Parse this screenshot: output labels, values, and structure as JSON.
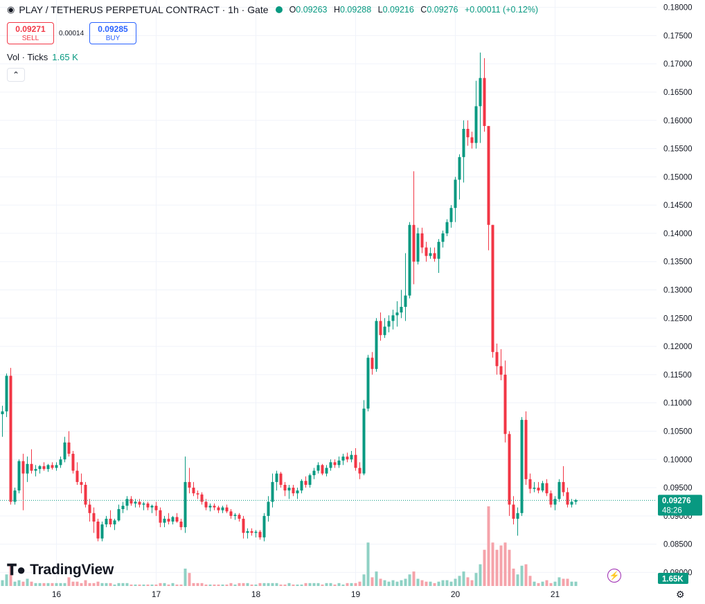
{
  "header": {
    "title": "PLAY / TETHERUS PERPETUAL CONTRACT · 1h · Gate",
    "open_label": "O",
    "open": "0.09263",
    "high_label": "H",
    "high": "0.09288",
    "low_label": "L",
    "low": "0.09216",
    "close_label": "C",
    "close": "0.09276",
    "change": "+0.00011 (+0.12%)"
  },
  "trade": {
    "sell_price": "0.09271",
    "sell_label": "SELL",
    "spread": "0.00014",
    "buy_price": "0.09285",
    "buy_label": "BUY"
  },
  "volume_legend": {
    "label": "Vol · Ticks",
    "value": "1.65 K"
  },
  "brand": {
    "name": "TradingView"
  },
  "price_tag": {
    "price": "0.09276",
    "countdown": "48:26"
  },
  "volume_tag": "1.65K",
  "colors": {
    "up": "#089981",
    "down": "#f23645",
    "up_vol": "#8fd1c4",
    "down_vol": "#f5a3aa"
  },
  "chart_data": {
    "type": "candlestick",
    "title": "PLAY / TETHERUS PERPETUAL CONTRACT · 1h · Gate",
    "y_ticks": [
      "0.08000",
      "0.08500",
      "0.09000",
      "0.09500",
      "0.10000",
      "0.10500",
      "0.11000",
      "0.11500",
      "0.12000",
      "0.12500",
      "0.13000",
      "0.13500",
      "0.14000",
      "0.14500",
      "0.15000",
      "0.15500",
      "0.16000",
      "0.16500",
      "0.17000",
      "0.17500",
      "0.18000"
    ],
    "ylim": [
      0.0776,
      0.1813
    ],
    "x_ticks": [
      {
        "label": "16",
        "index": 13
      },
      {
        "label": "17",
        "index": 37
      },
      {
        "label": "18",
        "index": 61
      },
      {
        "label": "19",
        "index": 85
      },
      {
        "label": "20",
        "index": 109
      },
      {
        "label": "21",
        "index": 133
      }
    ],
    "grid": true,
    "volume_pane": true,
    "last_price": 0.09276,
    "candles": [
      [
        0.108,
        0.1095,
        0.104,
        0.1085,
        4
      ],
      [
        0.1085,
        0.1152,
        0.1075,
        0.1148,
        8
      ],
      [
        0.1148,
        0.1162,
        0.092,
        0.0925,
        14
      ],
      [
        0.0925,
        0.095,
        0.092,
        0.0945,
        3
      ],
      [
        0.0945,
        0.1,
        0.094,
        0.0997,
        4
      ],
      [
        0.0997,
        0.101,
        0.091,
        0.0975,
        3
      ],
      [
        0.0975,
        0.1005,
        0.096,
        0.0992,
        5
      ],
      [
        0.0992,
        0.1018,
        0.0975,
        0.098,
        3
      ],
      [
        0.098,
        0.099,
        0.097,
        0.0983,
        2
      ],
      [
        0.0983,
        0.099,
        0.0975,
        0.0988,
        2
      ],
      [
        0.0988,
        0.0995,
        0.098,
        0.0983,
        2
      ],
      [
        0.0983,
        0.0992,
        0.0978,
        0.099,
        2
      ],
      [
        0.099,
        0.0995,
        0.0982,
        0.0985,
        2
      ],
      [
        0.0985,
        0.0995,
        0.098,
        0.099,
        2
      ],
      [
        0.099,
        0.1005,
        0.0985,
        0.1,
        2
      ],
      [
        0.1,
        0.104,
        0.0995,
        0.103,
        2
      ],
      [
        0.103,
        0.105,
        0.1005,
        0.101,
        6
      ],
      [
        0.101,
        0.1015,
        0.0975,
        0.098,
        3
      ],
      [
        0.098,
        0.0995,
        0.0955,
        0.096,
        3
      ],
      [
        0.096,
        0.0975,
        0.094,
        0.0955,
        2
      ],
      [
        0.0955,
        0.096,
        0.0915,
        0.092,
        4
      ],
      [
        0.092,
        0.093,
        0.089,
        0.0905,
        2
      ],
      [
        0.0905,
        0.0915,
        0.087,
        0.089,
        2
      ],
      [
        0.089,
        0.0895,
        0.0855,
        0.086,
        3
      ],
      [
        0.086,
        0.089,
        0.0855,
        0.0885,
        2
      ],
      [
        0.0885,
        0.09,
        0.088,
        0.0895,
        2
      ],
      [
        0.0895,
        0.091,
        0.088,
        0.0885,
        2
      ],
      [
        0.0885,
        0.0895,
        0.0875,
        0.0892,
        1
      ],
      [
        0.0892,
        0.092,
        0.089,
        0.0912,
        2
      ],
      [
        0.0912,
        0.0925,
        0.0905,
        0.0918,
        2
      ],
      [
        0.0918,
        0.0935,
        0.091,
        0.093,
        2
      ],
      [
        0.093,
        0.0935,
        0.0918,
        0.0922,
        1
      ],
      [
        0.0922,
        0.093,
        0.0915,
        0.0925,
        1
      ],
      [
        0.0925,
        0.093,
        0.0915,
        0.092,
        1
      ],
      [
        0.092,
        0.0925,
        0.091,
        0.0922,
        1
      ],
      [
        0.0922,
        0.0925,
        0.091,
        0.0915,
        1
      ],
      [
        0.0915,
        0.092,
        0.0905,
        0.0918,
        1
      ],
      [
        0.0918,
        0.0925,
        0.09,
        0.091,
        1
      ],
      [
        0.091,
        0.0915,
        0.088,
        0.0888,
        2
      ],
      [
        0.0888,
        0.09,
        0.088,
        0.0895,
        2
      ],
      [
        0.0895,
        0.0905,
        0.0885,
        0.089,
        1
      ],
      [
        0.089,
        0.09,
        0.0885,
        0.0898,
        2
      ],
      [
        0.0898,
        0.0905,
        0.0888,
        0.089,
        1
      ],
      [
        0.089,
        0.0895,
        0.0875,
        0.088,
        1
      ],
      [
        0.088,
        0.1005,
        0.087,
        0.096,
        12
      ],
      [
        0.096,
        0.0985,
        0.094,
        0.095,
        9
      ],
      [
        0.095,
        0.096,
        0.0935,
        0.094,
        2
      ],
      [
        0.094,
        0.0945,
        0.093,
        0.0938,
        2
      ],
      [
        0.0938,
        0.0942,
        0.092,
        0.0925,
        2
      ],
      [
        0.0925,
        0.093,
        0.091,
        0.0915,
        1
      ],
      [
        0.0915,
        0.0922,
        0.0908,
        0.0918,
        1
      ],
      [
        0.0918,
        0.0922,
        0.091,
        0.0915,
        1
      ],
      [
        0.0915,
        0.0918,
        0.0905,
        0.091,
        1
      ],
      [
        0.091,
        0.0918,
        0.0905,
        0.0915,
        1
      ],
      [
        0.0915,
        0.092,
        0.0905,
        0.0908,
        1
      ],
      [
        0.0908,
        0.0912,
        0.0895,
        0.09,
        2
      ],
      [
        0.09,
        0.0905,
        0.0893,
        0.0902,
        1
      ],
      [
        0.0902,
        0.0905,
        0.089,
        0.0895,
        2
      ],
      [
        0.0895,
        0.09,
        0.086,
        0.087,
        2
      ],
      [
        0.087,
        0.0878,
        0.086,
        0.0873,
        2
      ],
      [
        0.0873,
        0.0878,
        0.0865,
        0.087,
        1
      ],
      [
        0.087,
        0.0875,
        0.0862,
        0.0872,
        1
      ],
      [
        0.0872,
        0.0875,
        0.0858,
        0.0862,
        2
      ],
      [
        0.0862,
        0.0905,
        0.0855,
        0.09,
        2
      ],
      [
        0.09,
        0.0935,
        0.089,
        0.0925,
        2
      ],
      [
        0.0925,
        0.0975,
        0.0915,
        0.096,
        2
      ],
      [
        0.096,
        0.098,
        0.0945,
        0.0975,
        2
      ],
      [
        0.0975,
        0.0978,
        0.095,
        0.0955,
        1
      ],
      [
        0.0955,
        0.096,
        0.0935,
        0.0945,
        1
      ],
      [
        0.0945,
        0.0955,
        0.093,
        0.095,
        2
      ],
      [
        0.095,
        0.0955,
        0.0935,
        0.094,
        1
      ],
      [
        0.094,
        0.095,
        0.093,
        0.0945,
        1
      ],
      [
        0.0945,
        0.0965,
        0.094,
        0.0962,
        1
      ],
      [
        0.0962,
        0.097,
        0.095,
        0.0955,
        2
      ],
      [
        0.0955,
        0.0975,
        0.095,
        0.0972,
        2
      ],
      [
        0.0972,
        0.0985,
        0.0965,
        0.098,
        2
      ],
      [
        0.098,
        0.0995,
        0.0975,
        0.099,
        2
      ],
      [
        0.099,
        0.0992,
        0.0972,
        0.0975,
        1
      ],
      [
        0.0975,
        0.099,
        0.097,
        0.0985,
        2
      ],
      [
        0.0985,
        0.1,
        0.098,
        0.0995,
        2
      ],
      [
        0.0995,
        0.1,
        0.0985,
        0.099,
        1
      ],
      [
        0.099,
        0.1005,
        0.0985,
        0.0998,
        2
      ],
      [
        0.0998,
        0.101,
        0.099,
        0.1005,
        1
      ],
      [
        0.1005,
        0.1012,
        0.0995,
        0.1,
        2
      ],
      [
        0.1,
        0.1015,
        0.0995,
        0.1008,
        2
      ],
      [
        0.1008,
        0.102,
        0.098,
        0.0985,
        2
      ],
      [
        0.0985,
        0.0995,
        0.0965,
        0.0975,
        3
      ],
      [
        0.0975,
        0.1105,
        0.0972,
        0.109,
        8
      ],
      [
        0.109,
        0.1185,
        0.1085,
        0.118,
        30
      ],
      [
        0.118,
        0.119,
        0.115,
        0.116,
        6
      ],
      [
        0.116,
        0.125,
        0.1155,
        0.1245,
        10
      ],
      [
        0.1245,
        0.126,
        0.121,
        0.122,
        5
      ],
      [
        0.122,
        0.125,
        0.1215,
        0.1235,
        4
      ],
      [
        0.1235,
        0.1255,
        0.1225,
        0.1245,
        3
      ],
      [
        0.1245,
        0.1265,
        0.123,
        0.1255,
        4
      ],
      [
        0.1255,
        0.128,
        0.1235,
        0.126,
        3
      ],
      [
        0.126,
        0.13,
        0.125,
        0.127,
        4
      ],
      [
        0.127,
        0.1365,
        0.1245,
        0.129,
        5
      ],
      [
        0.129,
        0.142,
        0.1285,
        0.1415,
        8
      ],
      [
        0.1415,
        0.151,
        0.131,
        0.135,
        10
      ],
      [
        0.135,
        0.141,
        0.1345,
        0.14,
        5
      ],
      [
        0.14,
        0.141,
        0.1365,
        0.1375,
        4
      ],
      [
        0.1375,
        0.1385,
        0.135,
        0.136,
        3
      ],
      [
        0.136,
        0.1375,
        0.1355,
        0.1365,
        3
      ],
      [
        0.1365,
        0.1375,
        0.135,
        0.1355,
        2
      ],
      [
        0.1355,
        0.139,
        0.133,
        0.1385,
        3
      ],
      [
        0.1385,
        0.1405,
        0.1375,
        0.14,
        4
      ],
      [
        0.14,
        0.1425,
        0.1395,
        0.142,
        4
      ],
      [
        0.142,
        0.145,
        0.141,
        0.1445,
        3
      ],
      [
        0.1445,
        0.15,
        0.142,
        0.1495,
        5
      ],
      [
        0.1495,
        0.154,
        0.146,
        0.1535,
        7
      ],
      [
        0.1535,
        0.16,
        0.149,
        0.1585,
        10
      ],
      [
        0.1585,
        0.16,
        0.1555,
        0.157,
        6
      ],
      [
        0.157,
        0.158,
        0.155,
        0.156,
        4
      ],
      [
        0.156,
        0.167,
        0.155,
        0.1625,
        9
      ],
      [
        0.1625,
        0.172,
        0.156,
        0.1675,
        15
      ],
      [
        0.1675,
        0.171,
        0.158,
        0.159,
        25
      ],
      [
        0.159,
        0.159,
        0.137,
        0.1415,
        55
      ],
      [
        0.1415,
        0.1415,
        0.118,
        0.119,
        30
      ],
      [
        0.119,
        0.1205,
        0.115,
        0.1165,
        25
      ],
      [
        0.1165,
        0.1195,
        0.114,
        0.115,
        28
      ],
      [
        0.115,
        0.1175,
        0.103,
        0.1045,
        30
      ],
      [
        0.1045,
        0.105,
        0.09,
        0.092,
        25
      ],
      [
        0.092,
        0.0935,
        0.0885,
        0.0895,
        12
      ],
      [
        0.0895,
        0.0915,
        0.0865,
        0.0905,
        8
      ],
      [
        0.0905,
        0.1075,
        0.09,
        0.107,
        14
      ],
      [
        0.107,
        0.1085,
        0.0955,
        0.0965,
        15
      ],
      [
        0.0965,
        0.0975,
        0.094,
        0.0948,
        7
      ],
      [
        0.0948,
        0.096,
        0.0942,
        0.095,
        3
      ],
      [
        0.095,
        0.096,
        0.094,
        0.0945,
        2
      ],
      [
        0.0945,
        0.0962,
        0.0942,
        0.0958,
        3
      ],
      [
        0.0958,
        0.0965,
        0.0935,
        0.094,
        4
      ],
      [
        0.094,
        0.0945,
        0.0915,
        0.092,
        2
      ],
      [
        0.092,
        0.0935,
        0.091,
        0.093,
        3
      ],
      [
        0.093,
        0.0965,
        0.0925,
        0.096,
        6
      ],
      [
        0.096,
        0.0988,
        0.0935,
        0.0942,
        5
      ],
      [
        0.0942,
        0.095,
        0.0915,
        0.092,
        5
      ],
      [
        0.092,
        0.093,
        0.0915,
        0.0925,
        3
      ],
      [
        0.0925,
        0.093,
        0.092,
        0.0928,
        3
      ]
    ]
  }
}
